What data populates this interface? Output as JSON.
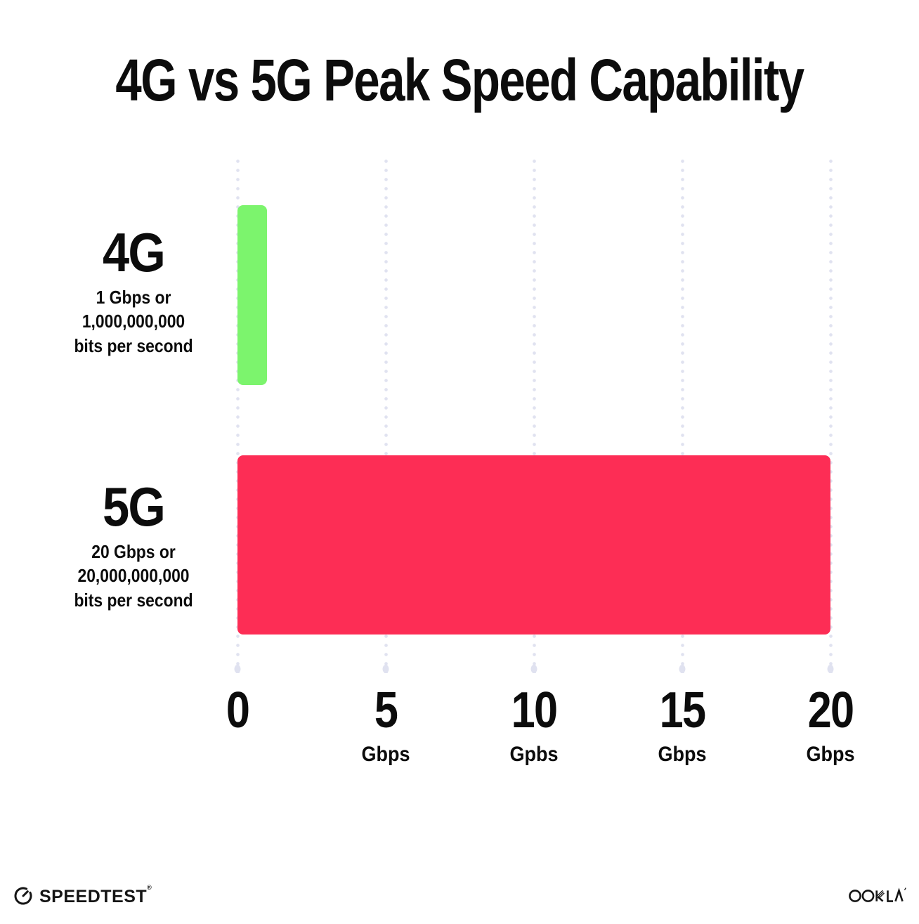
{
  "chart_data": {
    "type": "bar",
    "orientation": "horizontal",
    "title": "4G vs 5G Peak Speed Capability",
    "categories": [
      "4G",
      "5G"
    ],
    "values": [
      1,
      20
    ],
    "bars": [
      {
        "label": "4G",
        "value_gbps": 1,
        "sublabel_lines": [
          "1 Gbps or",
          "1,000,000,000",
          "bits per second"
        ],
        "color": "#7CF46D"
      },
      {
        "label": "5G",
        "value_gbps": 20,
        "sublabel_lines": [
          "20 Gbps or",
          "20,000,000,000",
          "bits per second"
        ],
        "color": "#FD2D55"
      }
    ],
    "xlabel": "",
    "ylabel": "",
    "xlim": [
      0,
      20
    ],
    "x_ticks": [
      {
        "label": "0",
        "unit": ""
      },
      {
        "label": "5",
        "unit": "Gbps"
      },
      {
        "label": "10",
        "unit": "Gpbs"
      },
      {
        "label": "15",
        "unit": "Gbps"
      },
      {
        "label": "20",
        "unit": "Gbps"
      }
    ],
    "grid": "vertical-dotted",
    "legend": "none"
  },
  "footer": {
    "speedtest_label": "SPEEDTEST",
    "speedtest_trademark": "®",
    "speedtest_icon": "speedtest-gauge-icon",
    "ookla_label": "OOKLA"
  },
  "colors": {
    "bar_4g": "#7CF46D",
    "bar_5g": "#FD2D55",
    "gridline": "#E0E2F0",
    "text": "#101010",
    "background": "#FFFFFF"
  }
}
